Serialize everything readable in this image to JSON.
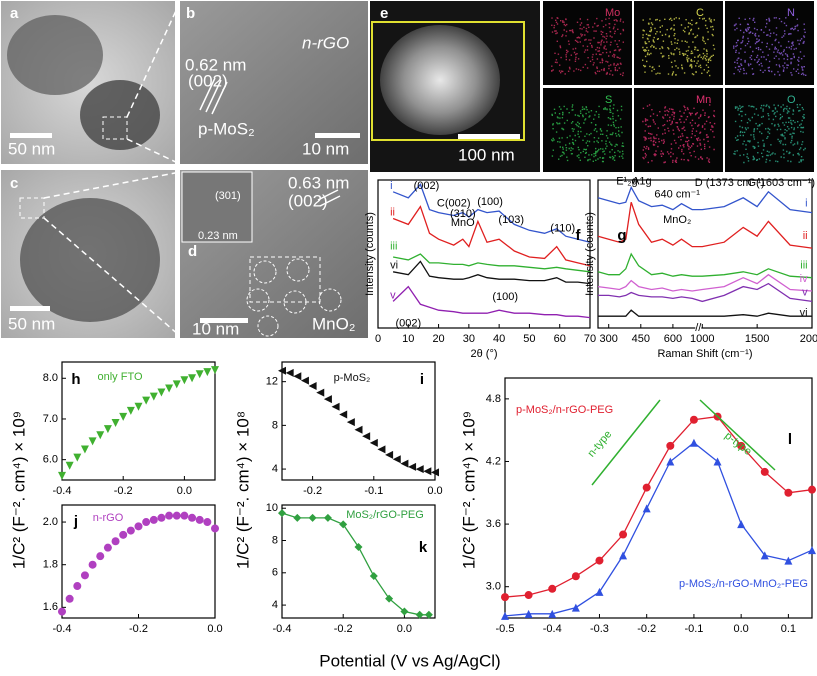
{
  "panels": {
    "a": {
      "label": "a",
      "scale": "50 nm"
    },
    "b": {
      "label": "b",
      "scale": "10 nm",
      "texts": [
        "0.62 nm",
        "(002)",
        "n-rGO",
        "p-MoS₂"
      ]
    },
    "c": {
      "label": "c",
      "scale": "50 nm"
    },
    "d": {
      "label": "d",
      "scale": "10 nm",
      "texts": [
        "(301)",
        "0.23 nm",
        "0.63 nm",
        "(002)",
        "MnO₂"
      ]
    },
    "e": {
      "label": "e",
      "scale": "100 nm",
      "maps": [
        "Mo",
        "C",
        "N",
        "S",
        "Mn",
        "O"
      ]
    }
  },
  "x_label": "Potential (V vs Ag/AgCl)",
  "y_labels": [
    "1/C² (F⁻². cm⁴) × 10⁹",
    "1/C² (F⁻². cm⁴) × 10⁸",
    "1/C² (F⁻². cm⁴) × 10⁹"
  ],
  "chart_data": [
    {
      "type": "line",
      "label": "f",
      "x_label": "2θ (°)",
      "y_label": "Intensity (counts)",
      "x": [
        5,
        10,
        14,
        17,
        20,
        25,
        28,
        30,
        33,
        36,
        40,
        45,
        50,
        55,
        59,
        62,
        66,
        70
      ],
      "xlim": [
        0,
        70
      ],
      "xticks": [
        0,
        10,
        20,
        30,
        40,
        50,
        60,
        70
      ],
      "ylim": [
        0,
        100
      ],
      "series": [
        {
          "name": "i",
          "color": "#3355cc",
          "values": [
            92,
            88,
            97,
            80,
            78,
            76,
            78,
            75,
            80,
            78,
            79,
            70,
            66,
            64,
            67,
            62,
            60,
            58
          ]
        },
        {
          "name": "ii",
          "color": "#e02020",
          "values": [
            74,
            70,
            82,
            64,
            60,
            56,
            60,
            55,
            72,
            58,
            60,
            52,
            48,
            47,
            55,
            46,
            44,
            42
          ]
        },
        {
          "name": "iii",
          "color": "#30b030",
          "values": [
            48,
            46,
            50,
            44,
            44,
            43,
            43,
            42,
            44,
            43,
            42,
            42,
            41,
            40,
            41,
            40,
            39,
            38
          ]
        },
        {
          "name": "vi",
          "color": "#111111",
          "values": [
            38,
            36,
            45,
            35,
            34,
            33,
            33,
            34,
            36,
            34,
            33,
            33,
            32,
            32,
            34,
            31,
            31,
            30
          ]
        },
        {
          "name": "v",
          "color": "#9020b0",
          "values": [
            18,
            28,
            16,
            14,
            12,
            11,
            10,
            10,
            10,
            10,
            12,
            10,
            10,
            9,
            9,
            8,
            8,
            7
          ]
        }
      ],
      "annotations": [
        "(002)",
        "C(002)",
        "(310)",
        "MnO",
        "(100)",
        "(103)",
        "(110)",
        "(100)",
        "(002)"
      ]
    },
    {
      "type": "line",
      "label": "g",
      "x_label": "Raman Shift (cm⁻¹)",
      "y_label": "Intensity (counts)",
      "x": [
        250,
        300,
        350,
        380,
        405,
        440,
        500,
        550,
        600,
        640,
        690,
        1000,
        1200,
        1373,
        1500,
        1603,
        1800,
        2000
      ],
      "xlim": [
        250,
        2000
      ],
      "xbreak": [
        700,
        1000
      ],
      "xticks": [
        300,
        450,
        600,
        1000,
        1500,
        2000
      ],
      "ylim": [
        0,
        100
      ],
      "series": [
        {
          "name": "i",
          "color": "#3355cc",
          "values": [
            88,
            86,
            84,
            85,
            95,
            86,
            82,
            83,
            80,
            84,
            80,
            80,
            82,
            88,
            82,
            92,
            80,
            78
          ]
        },
        {
          "name": "ii",
          "color": "#e02020",
          "values": [
            62,
            60,
            58,
            60,
            85,
            70,
            58,
            60,
            56,
            60,
            55,
            55,
            58,
            68,
            62,
            72,
            56,
            54
          ]
        },
        {
          "name": "iii",
          "color": "#30b030",
          "values": [
            38,
            36,
            36,
            40,
            50,
            42,
            36,
            37,
            35,
            36,
            35,
            35,
            36,
            38,
            36,
            40,
            35,
            34
          ]
        },
        {
          "name": "iv",
          "color": "#d060d0",
          "values": [
            28,
            27,
            26,
            28,
            32,
            28,
            26,
            27,
            25,
            26,
            25,
            26,
            28,
            34,
            30,
            36,
            26,
            25
          ]
        },
        {
          "name": "v",
          "color": "#8030b0",
          "values": [
            22,
            22,
            21,
            22,
            24,
            22,
            21,
            21,
            20,
            21,
            20,
            18,
            22,
            28,
            26,
            30,
            20,
            18
          ]
        },
        {
          "name": "vi",
          "color": "#111111",
          "values": [
            8,
            8,
            8,
            8,
            12,
            8,
            8,
            8,
            8,
            8,
            8,
            8,
            8,
            9,
            8,
            10,
            8,
            8
          ]
        }
      ],
      "annotations": [
        "E¹₂g",
        "A1g",
        "640 cm⁻¹",
        "MnO₂",
        "D (1373 cm⁻¹)",
        "G(1603 cm⁻¹)"
      ]
    },
    {
      "type": "scatter",
      "label": "h",
      "title": "only FTO",
      "x": [
        -0.4,
        -0.375,
        -0.35,
        -0.325,
        -0.3,
        -0.275,
        -0.25,
        -0.225,
        -0.2,
        -0.175,
        -0.15,
        -0.125,
        -0.1,
        -0.075,
        -0.05,
        -0.025,
        0,
        0.025,
        0.05,
        0.075,
        0.1
      ],
      "xlim": [
        -0.4,
        0.1
      ],
      "xticks": [
        -0.4,
        -0.2,
        {
          "value": 0,
          "label": "0.0"
        }
      ],
      "ylim": [
        5.5,
        8.4
      ],
      "yticks": [
        {
          "value": 6,
          "label": "6.0"
        },
        {
          "value": 7,
          "label": "7.0"
        },
        {
          "value": 8,
          "label": "8.0"
        }
      ],
      "series": [
        {
          "color": "#40b030",
          "marker": "tri-down",
          "values": [
            5.6,
            5.85,
            6.05,
            6.25,
            6.45,
            6.6,
            6.75,
            6.9,
            7.05,
            7.2,
            7.3,
            7.45,
            7.55,
            7.65,
            7.75,
            7.85,
            7.95,
            8.0,
            8.1,
            8.15,
            8.2
          ]
        }
      ]
    },
    {
      "type": "scatter",
      "label": "i",
      "title": "p-MoS₂",
      "x": [
        -0.25,
        -0.2375,
        -0.225,
        -0.2125,
        -0.2,
        -0.1875,
        -0.175,
        -0.1625,
        -0.15,
        -0.1375,
        -0.125,
        -0.1125,
        -0.1,
        -0.0875,
        -0.075,
        -0.0625,
        -0.05,
        -0.0375,
        -0.025,
        -0.0125,
        0
      ],
      "xlim": [
        -0.25,
        0
      ],
      "xticks": [
        -0.2,
        -0.1,
        {
          "value": 0,
          "label": "0.0"
        }
      ],
      "ylim": [
        3,
        13.8
      ],
      "yticks": [
        4,
        8,
        12
      ],
      "series": [
        {
          "color": "#111111",
          "marker": "tri-left",
          "values": [
            13.0,
            12.8,
            12.5,
            12.1,
            11.6,
            11.0,
            10.4,
            9.7,
            9.0,
            8.3,
            7.6,
            7.0,
            6.4,
            5.8,
            5.3,
            4.9,
            4.5,
            4.2,
            4.0,
            3.8,
            3.7
          ]
        }
      ]
    },
    {
      "type": "scatter",
      "label": "j",
      "title": "n-rGO",
      "x": [
        -0.4,
        -0.38,
        -0.36,
        -0.34,
        -0.32,
        -0.3,
        -0.28,
        -0.26,
        -0.24,
        -0.22,
        -0.2,
        -0.18,
        -0.16,
        -0.14,
        -0.12,
        -0.1,
        -0.08,
        -0.06,
        -0.04,
        -0.02,
        0
      ],
      "xlim": [
        -0.4,
        0
      ],
      "xticks": [
        -0.4,
        -0.2,
        {
          "value": 0,
          "label": "0.0"
        }
      ],
      "ylim": [
        1.55,
        2.08
      ],
      "yticks": [
        1.6,
        1.8,
        {
          "value": 2,
          "label": "2.0"
        }
      ],
      "series": [
        {
          "color": "#b040c0",
          "marker": "circle",
          "values": [
            1.58,
            1.64,
            1.7,
            1.75,
            1.8,
            1.84,
            1.88,
            1.91,
            1.94,
            1.96,
            1.98,
            2.0,
            2.01,
            2.02,
            2.03,
            2.03,
            2.03,
            2.02,
            2.01,
            2.0,
            1.97
          ]
        }
      ]
    },
    {
      "type": "line",
      "label": "k",
      "title": "MoS₂/rGO-PEG",
      "x": [
        -0.4,
        -0.35,
        -0.3,
        -0.25,
        -0.2,
        -0.15,
        -0.1,
        -0.05,
        0,
        0.05,
        0.08
      ],
      "xlim": [
        -0.4,
        0.1
      ],
      "xticks": [
        -0.4,
        -0.2,
        {
          "value": 0,
          "label": "0.0"
        }
      ],
      "ylim": [
        3.2,
        10.2
      ],
      "yticks": [
        4,
        6,
        8,
        10
      ],
      "series": [
        {
          "color": "#30a040",
          "marker": "diamond",
          "values": [
            9.7,
            9.4,
            9.4,
            9.4,
            9.0,
            7.6,
            5.8,
            4.4,
            3.6,
            3.4,
            3.4
          ]
        }
      ]
    },
    {
      "type": "line",
      "label": "l",
      "x": [
        -0.5,
        -0.45,
        -0.4,
        -0.35,
        -0.3,
        -0.25,
        -0.2,
        -0.15,
        -0.1,
        -0.05,
        0,
        0.05,
        0.1,
        0.15
      ],
      "xlim": [
        -0.5,
        0.15
      ],
      "xticks": [
        -0.5,
        -0.4,
        -0.3,
        -0.2,
        -0.1,
        {
          "value": 0,
          "label": "0.0"
        },
        0.1
      ],
      "ylim": [
        2.7,
        5.0
      ],
      "yticks": [
        {
          "value": 3,
          "label": "3.0"
        },
        3.6,
        4.2,
        4.8
      ],
      "series": [
        {
          "name": "p-MoS₂/n-rGO-PEG",
          "color": "#e02030",
          "marker": "circle",
          "values": [
            2.9,
            2.92,
            2.98,
            3.1,
            3.25,
            3.5,
            3.95,
            4.35,
            4.6,
            4.63,
            4.35,
            4.1,
            3.9,
            3.93
          ]
        },
        {
          "name": "p-MoS₂/n-rGO-MnO₂-PEG",
          "color": "#3050e0",
          "marker": "tri-up",
          "values": [
            2.72,
            2.74,
            2.74,
            2.8,
            2.95,
            3.3,
            3.75,
            4.2,
            4.38,
            4.2,
            3.6,
            3.3,
            3.25,
            3.35
          ]
        }
      ],
      "annotations": [
        "n-type",
        "p-type"
      ]
    }
  ]
}
